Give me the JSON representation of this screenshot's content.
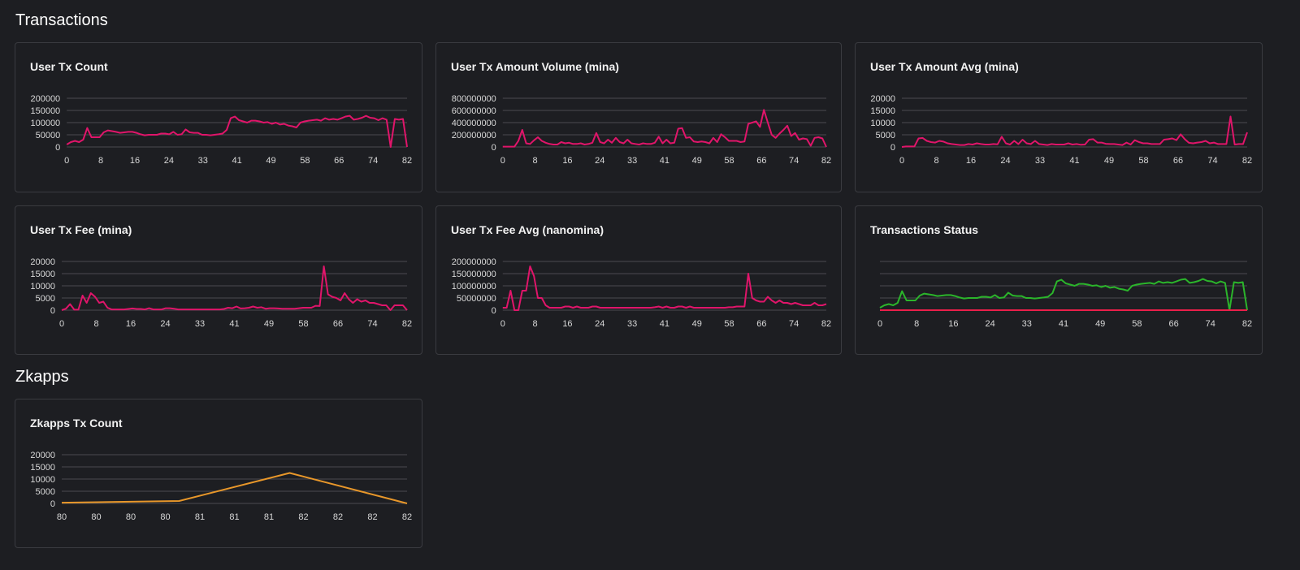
{
  "sections": {
    "transactions": "Transactions",
    "zkapps": "Zkapps"
  },
  "colors": {
    "pink": "#e0156a",
    "green": "#2bb52b",
    "red": "#ea1f4a",
    "orange": "#e8972a"
  },
  "chart_data": [
    {
      "id": "user-tx-count",
      "type": "line",
      "title": "User Tx Count",
      "xlabel": "",
      "ylabel": "",
      "ylim": [
        0,
        200000
      ],
      "y_ticks": [
        0,
        50000,
        100000,
        150000,
        200000
      ],
      "x_ticks": [
        "0",
        "8",
        "16",
        "24",
        "33",
        "41",
        "49",
        "58",
        "66",
        "74",
        "82"
      ],
      "grid": true,
      "series": [
        {
          "color": "#e0156a",
          "values": [
            10000,
            20000,
            25000,
            20000,
            30000,
            78000,
            40000,
            40000,
            40000,
            60000,
            68000,
            65000,
            62000,
            58000,
            60000,
            62000,
            62000,
            58000,
            52000,
            48000,
            50000,
            50000,
            50000,
            55000,
            55000,
            52000,
            62000,
            50000,
            52000,
            72000,
            60000,
            58000,
            58000,
            50000,
            50000,
            48000,
            50000,
            52000,
            55000,
            70000,
            118000,
            125000,
            110000,
            105000,
            100000,
            108000,
            108000,
            105000,
            100000,
            102000,
            95000,
            100000,
            92000,
            95000,
            88000,
            85000,
            80000,
            100000,
            105000,
            108000,
            110000,
            112000,
            108000,
            118000,
            112000,
            115000,
            112000,
            118000,
            125000,
            128000,
            112000,
            115000,
            120000,
            128000,
            120000,
            118000,
            110000,
            118000,
            112000,
            0,
            115000,
            112000,
            115000,
            0
          ]
        }
      ]
    },
    {
      "id": "user-tx-amount-volume",
      "type": "line",
      "title": "User Tx Amount Volume (mina)",
      "xlabel": "",
      "ylabel": "",
      "ylim": [
        0,
        800000000
      ],
      "y_ticks": [
        0,
        200000000,
        400000000,
        600000000,
        800000000
      ],
      "x_ticks": [
        "0",
        "8",
        "16",
        "24",
        "33",
        "41",
        "49",
        "58",
        "66",
        "74",
        "82"
      ],
      "grid": true,
      "series": [
        {
          "color": "#e0156a",
          "values": [
            5000000,
            5000000,
            5000000,
            5000000,
            100000000,
            280000000,
            60000000,
            50000000,
            110000000,
            160000000,
            100000000,
            70000000,
            50000000,
            40000000,
            40000000,
            80000000,
            60000000,
            70000000,
            50000000,
            50000000,
            60000000,
            40000000,
            50000000,
            70000000,
            230000000,
            80000000,
            60000000,
            120000000,
            70000000,
            150000000,
            80000000,
            60000000,
            120000000,
            60000000,
            50000000,
            40000000,
            60000000,
            50000000,
            50000000,
            70000000,
            170000000,
            60000000,
            120000000,
            60000000,
            70000000,
            300000000,
            310000000,
            150000000,
            160000000,
            90000000,
            80000000,
            90000000,
            80000000,
            60000000,
            150000000,
            80000000,
            210000000,
            160000000,
            100000000,
            100000000,
            100000000,
            80000000,
            90000000,
            380000000,
            400000000,
            420000000,
            330000000,
            610000000,
            400000000,
            200000000,
            150000000,
            220000000,
            280000000,
            350000000,
            180000000,
            230000000,
            120000000,
            140000000,
            130000000,
            20000000,
            150000000,
            160000000,
            140000000,
            0
          ]
        }
      ]
    },
    {
      "id": "user-tx-amount-avg",
      "type": "line",
      "title": "User Tx Amount Avg (mina)",
      "xlabel": "",
      "ylabel": "",
      "ylim": [
        0,
        20000
      ],
      "y_ticks": [
        0,
        5000,
        10000,
        15000,
        20000
      ],
      "x_ticks": [
        "0",
        "8",
        "16",
        "24",
        "33",
        "41",
        "49",
        "58",
        "66",
        "74",
        "82"
      ],
      "grid": true,
      "series": [
        {
          "color": "#e0156a",
          "values": [
            0,
            200,
            200,
            200,
            3500,
            3700,
            2500,
            2000,
            1800,
            2500,
            2200,
            1500,
            1200,
            1000,
            800,
            800,
            1200,
            1000,
            1500,
            1200,
            1000,
            1000,
            1200,
            1100,
            4200,
            1500,
            1000,
            2500,
            1200,
            3000,
            1500,
            1200,
            2500,
            1200,
            1000,
            800,
            1200,
            1000,
            1000,
            1000,
            1500,
            1000,
            1200,
            900,
            1000,
            3000,
            3200,
            1800,
            1800,
            1300,
            1200,
            1200,
            1000,
            800,
            1800,
            1000,
            2800,
            2000,
            1500,
            1500,
            1200,
            1200,
            1200,
            3000,
            3200,
            3500,
            2800,
            5200,
            3200,
            1700,
            1500,
            1800,
            2000,
            2500,
            1500,
            1800,
            1200,
            1200,
            1200,
            12500,
            1000,
            1200,
            1200,
            6000
          ]
        }
      ]
    },
    {
      "id": "user-tx-fee",
      "type": "line",
      "title": "User Tx Fee (mina)",
      "xlabel": "",
      "ylabel": "",
      "ylim": [
        0,
        20000
      ],
      "y_ticks": [
        0,
        5000,
        10000,
        15000,
        20000
      ],
      "x_ticks": [
        "0",
        "8",
        "16",
        "24",
        "33",
        "41",
        "49",
        "58",
        "66",
        "74",
        "82"
      ],
      "grid": true,
      "series": [
        {
          "color": "#e0156a",
          "values": [
            0,
            600,
            2500,
            200,
            200,
            6000,
            3000,
            7000,
            5500,
            3000,
            3500,
            1000,
            300,
            300,
            300,
            300,
            500,
            700,
            500,
            500,
            300,
            800,
            300,
            300,
            300,
            800,
            800,
            600,
            300,
            300,
            300,
            300,
            300,
            300,
            300,
            300,
            300,
            300,
            300,
            500,
            1000,
            800,
            1500,
            700,
            800,
            1000,
            1500,
            1000,
            1200,
            600,
            800,
            800,
            700,
            600,
            600,
            600,
            600,
            800,
            1000,
            1000,
            1000,
            1800,
            1700,
            18000,
            6500,
            5500,
            5000,
            4000,
            7000,
            4500,
            3000,
            4500,
            3500,
            4000,
            3000,
            3000,
            2500,
            2000,
            2000,
            0,
            2000,
            2000,
            2000,
            0
          ]
        }
      ]
    },
    {
      "id": "user-tx-fee-avg",
      "type": "line",
      "title": "User Tx Fee Avg (nanomina)",
      "xlabel": "",
      "ylabel": "",
      "ylim": [
        0,
        200000000
      ],
      "y_ticks": [
        0,
        50000000,
        100000000,
        150000000,
        200000000
      ],
      "x_ticks": [
        "0",
        "8",
        "16",
        "24",
        "33",
        "41",
        "49",
        "58",
        "66",
        "74",
        "82"
      ],
      "grid": true,
      "series": [
        {
          "color": "#e0156a",
          "values": [
            10000000,
            10000000,
            80000000,
            0,
            0,
            80000000,
            80000000,
            180000000,
            140000000,
            50000000,
            50000000,
            20000000,
            10000000,
            10000000,
            10000000,
            10000000,
            15000000,
            15000000,
            10000000,
            15000000,
            10000000,
            10000000,
            10000000,
            15000000,
            15000000,
            10000000,
            10000000,
            10000000,
            10000000,
            10000000,
            10000000,
            10000000,
            10000000,
            10000000,
            10000000,
            10000000,
            10000000,
            10000000,
            10000000,
            12000000,
            15000000,
            10000000,
            15000000,
            10000000,
            10000000,
            15000000,
            15000000,
            10000000,
            15000000,
            10000000,
            10000000,
            10000000,
            10000000,
            10000000,
            10000000,
            10000000,
            10000000,
            10000000,
            12000000,
            12000000,
            15000000,
            15000000,
            15000000,
            150000000,
            50000000,
            40000000,
            35000000,
            35000000,
            55000000,
            40000000,
            30000000,
            40000000,
            30000000,
            30000000,
            25000000,
            30000000,
            25000000,
            20000000,
            20000000,
            20000000,
            30000000,
            20000000,
            20000000,
            25000000
          ]
        }
      ]
    },
    {
      "id": "transactions-status",
      "type": "line",
      "title": "Transactions Status",
      "xlabel": "",
      "ylabel": "",
      "ylim": [
        0,
        200000
      ],
      "x_ticks": [
        "0",
        "8",
        "16",
        "24",
        "33",
        "41",
        "49",
        "58",
        "66",
        "74",
        "82"
      ],
      "grid": true,
      "series": [
        {
          "color": "#2bb52b",
          "values": [
            10000,
            20000,
            25000,
            20000,
            30000,
            78000,
            40000,
            40000,
            40000,
            60000,
            68000,
            65000,
            62000,
            58000,
            60000,
            62000,
            62000,
            58000,
            52000,
            48000,
            50000,
            50000,
            50000,
            55000,
            55000,
            52000,
            62000,
            50000,
            52000,
            72000,
            60000,
            58000,
            58000,
            50000,
            50000,
            48000,
            50000,
            52000,
            55000,
            70000,
            118000,
            125000,
            110000,
            105000,
            100000,
            108000,
            108000,
            105000,
            100000,
            102000,
            95000,
            100000,
            92000,
            95000,
            88000,
            85000,
            80000,
            100000,
            105000,
            108000,
            110000,
            112000,
            108000,
            118000,
            112000,
            115000,
            112000,
            118000,
            125000,
            128000,
            112000,
            115000,
            120000,
            128000,
            120000,
            118000,
            110000,
            118000,
            112000,
            0,
            115000,
            112000,
            115000,
            0
          ]
        },
        {
          "color": "#ea1f4a",
          "values": [
            0,
            0,
            0,
            0,
            0,
            0,
            0,
            0,
            0,
            0,
            0,
            0,
            0,
            0,
            0,
            0,
            0,
            0,
            0,
            0,
            0,
            0,
            0,
            0,
            0,
            0,
            0,
            0,
            0,
            0,
            0,
            0,
            0,
            0,
            0,
            0,
            0,
            0,
            0,
            0,
            0,
            0,
            0,
            0,
            0,
            0,
            0,
            0,
            0,
            0,
            0,
            0,
            0,
            0,
            0,
            0,
            0,
            0,
            0,
            0,
            0,
            0,
            0,
            0,
            0,
            0,
            0,
            0,
            0,
            0,
            0,
            0,
            0,
            0,
            0,
            0,
            0,
            0,
            0,
            0,
            0,
            0,
            0,
            0
          ]
        }
      ]
    },
    {
      "id": "zkapps-tx-count",
      "type": "line",
      "title": "Zkapps Tx Count",
      "xlabel": "",
      "ylabel": "",
      "ylim": [
        0,
        20000
      ],
      "y_ticks": [
        0,
        5000,
        10000,
        15000,
        20000
      ],
      "x_ticks": [
        "80",
        "80",
        "80",
        "80",
        "81",
        "81",
        "81",
        "82",
        "82",
        "82",
        "82"
      ],
      "grid": true,
      "series": [
        {
          "color": "#e8972a",
          "values": [
            300,
            1000,
            12500,
            0
          ],
          "x_frac": [
            0,
            0.34,
            0.66,
            1
          ]
        }
      ]
    }
  ]
}
